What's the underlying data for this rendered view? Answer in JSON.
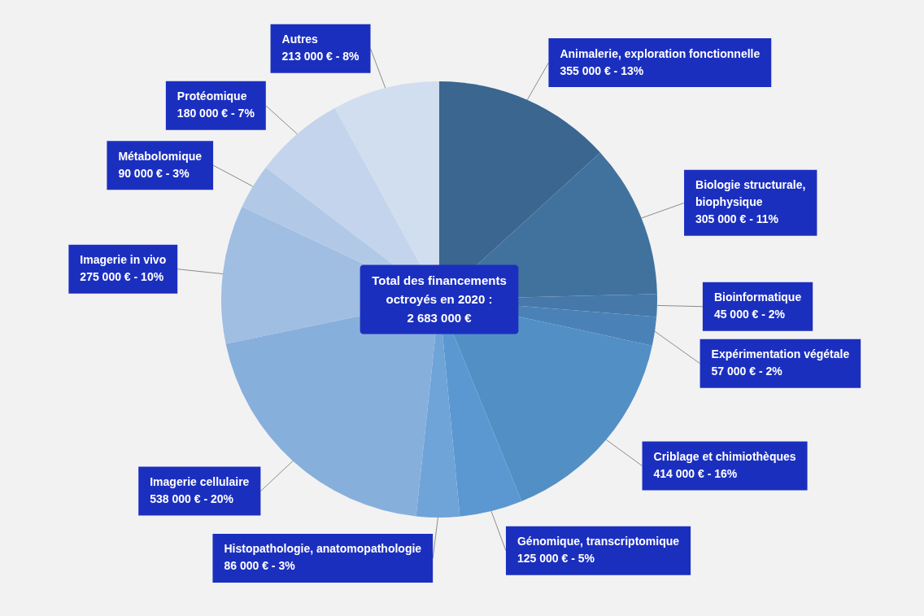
{
  "chart_data": {
    "type": "pie",
    "categories": [
      "Animalerie, exploration fonctionnelle",
      "Biologie structurale, biophysique",
      "Bioinformatique",
      "Expérimentation végétale",
      "Criblage et chimiothèques",
      "Génomique, transcriptomique",
      "Histopathologie, anatomopathologie",
      "Imagerie cellulaire",
      "Imagerie in vivo",
      "Métabolomique",
      "Protéomique",
      "Autres"
    ],
    "values": [
      355000,
      305000,
      45000,
      57000,
      414000,
      125000,
      86000,
      538000,
      275000,
      90000,
      180000,
      213000
    ],
    "colors": [
      "#3a6690",
      "#41729e",
      "#4679aa",
      "#4a82b8",
      "#528fc5",
      "#5b98d1",
      "#6fa4d8",
      "#87afdc",
      "#a0bde2",
      "#b1c9e7",
      "#c3d4ec",
      "#d1deef"
    ],
    "value_labels": [
      "355 000 € - 13%",
      "305 000 € - 11%",
      "45 000 € - 2%",
      "57 000 € - 2%",
      "414 000 € - 16%",
      "125 000 € - 5%",
      "86 000 € - 3%",
      "538 000 € - 20%",
      "275 000 € - 10%",
      "90 000 € - 3%",
      "180 000 € - 7%",
      "213 000 € - 8%"
    ],
    "annotations": [
      "Total des financements octroyés en 2020 : 2 683 000 €"
    ]
  }
}
